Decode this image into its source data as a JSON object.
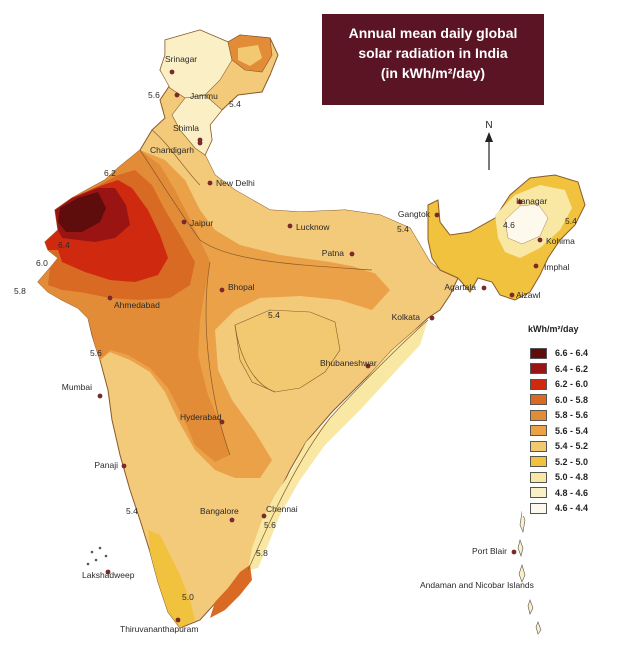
{
  "title": {
    "line1": "Annual mean daily global",
    "line2": "solar radiation in India",
    "line3": "(in kWh/m²/day)"
  },
  "compass": {
    "label": "N"
  },
  "legend": {
    "title": "kWh/m²/day",
    "items": [
      {
        "label": "6.6 - 6.4",
        "color": "#5e0c0c"
      },
      {
        "label": "6.4 - 6.2",
        "color": "#9a1414"
      },
      {
        "label": "6.2 - 6.0",
        "color": "#cf2a10"
      },
      {
        "label": "6.0 - 5.8",
        "color": "#d96a24"
      },
      {
        "label": "5.8 - 5.6",
        "color": "#e38c38"
      },
      {
        "label": "5.6 - 5.4",
        "color": "#eba147"
      },
      {
        "label": "5.4 - 5.2",
        "color": "#f2c870"
      },
      {
        "label": "5.2 - 5.0",
        "color": "#f0c23e"
      },
      {
        "label": "5.0 - 4.8",
        "color": "#f8e8a4"
      },
      {
        "label": "4.8 - 4.6",
        "color": "#fbefc6"
      },
      {
        "label": "4.6 - 4.4",
        "color": "#fdf9ec"
      }
    ]
  },
  "cities": [
    {
      "name": "Srinagar"
    },
    {
      "name": "Jammu"
    },
    {
      "name": "Shimla"
    },
    {
      "name": "Chandigarh"
    },
    {
      "name": "New Delhi"
    },
    {
      "name": "Jaipur"
    },
    {
      "name": "Lucknow"
    },
    {
      "name": "Patna"
    },
    {
      "name": "Gangtok"
    },
    {
      "name": "Itanagar"
    },
    {
      "name": "Kohima"
    },
    {
      "name": "Imphal"
    },
    {
      "name": "Aizawl"
    },
    {
      "name": "Agartala"
    },
    {
      "name": "Kolkata"
    },
    {
      "name": "Bhopal"
    },
    {
      "name": "Ahmedabad"
    },
    {
      "name": "Bhubaneshwar"
    },
    {
      "name": "Mumbai"
    },
    {
      "name": "Hyderabad"
    },
    {
      "name": "Panaji"
    },
    {
      "name": "Bangalore"
    },
    {
      "name": "Chennai"
    },
    {
      "name": "Lakshadweep"
    },
    {
      "name": "Thiruvananthapuram"
    },
    {
      "name": "Port Blair"
    },
    {
      "name": "Andaman and Nicobar Islands"
    }
  ],
  "isolines": [
    {
      "value": "5.6"
    },
    {
      "value": "5.4"
    },
    {
      "value": "6.2"
    },
    {
      "value": "6.4"
    },
    {
      "value": "6.0"
    },
    {
      "value": "5.8"
    },
    {
      "value": "5.6"
    },
    {
      "value": "5.4"
    },
    {
      "value": "5.4"
    },
    {
      "value": "4.6"
    },
    {
      "value": "5.4"
    },
    {
      "value": "5.4"
    },
    {
      "value": "5.6"
    },
    {
      "value": "5.8"
    },
    {
      "value": "5.0"
    }
  ]
}
